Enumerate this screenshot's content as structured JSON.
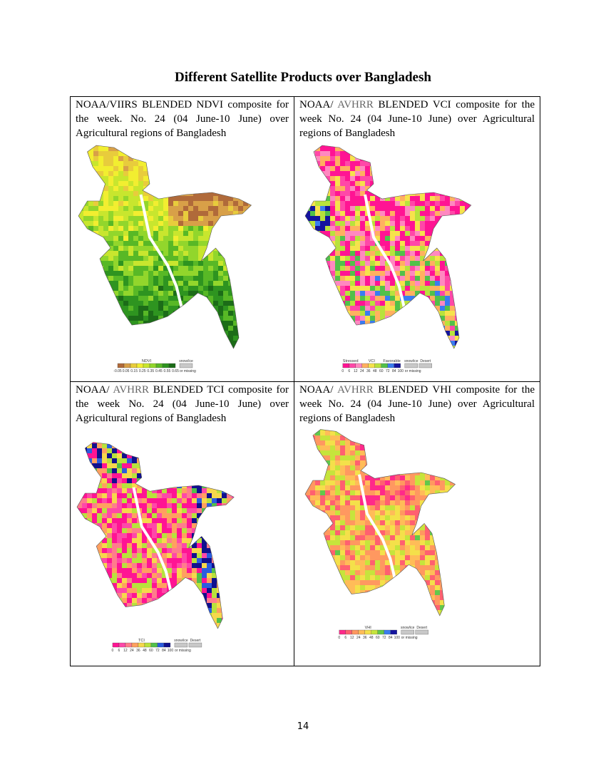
{
  "header": {
    "title": "Different Satellite Products over Bangladesh"
  },
  "panels": [
    {
      "caption": [
        "NOAA/VIIRS BLENDED NDVI composite for the week. No. 24 (04 June-10 June) over Agricultural regions of Bangladesh"
      ],
      "legend": {
        "above": [
          "NDVI"
        ],
        "ticks": [
          -0.05,
          0.05,
          0.15,
          0.25,
          0.35,
          0.45,
          0.55,
          0.65
        ],
        "extra": [
          "snow/ice"
        ],
        "missing": "or missing",
        "colors": [
          "#b06a3a",
          "#d8a048",
          "#e8cc3c",
          "#f2ee30",
          "#c8e62e",
          "#92d62c",
          "#58b826",
          "#2e9420",
          "#1c6c18"
        ]
      }
    },
    {
      "caption": [
        "NOAA/ ",
        "AVHRR",
        " BLENDED VCI composite for the week No. 24 (04 June-10 June) over Agricultural regions of Bangladesh"
      ],
      "legend": {
        "above": [
          "Stressed",
          "VCI",
          "Favorable"
        ],
        "ticks": [
          0,
          6,
          12,
          24,
          36,
          48,
          60,
          72,
          84,
          100
        ],
        "extra": [
          "snow/ice",
          "Desert"
        ],
        "missing": "or missing",
        "colors": [
          "#ff1493",
          "#ff48a8",
          "#ff88c0",
          "#ffb060",
          "#f6e24c",
          "#b8e23c",
          "#52c04a",
          "#3a7cf0",
          "#14149e"
        ]
      }
    },
    {
      "caption": [
        "NOAA/ ",
        "AVHRR",
        " BLENDED TCI composite for the week No. 24 (04 June-10 June) over Agricultural regions of Bangladesh"
      ],
      "legend": {
        "above": [
          "TCI"
        ],
        "ticks": [
          0,
          6,
          12,
          24,
          36,
          48,
          60,
          72,
          84,
          100
        ],
        "extra": [
          "snow/ice",
          "Desert"
        ],
        "missing": "or missing",
        "colors": [
          "#ff1493",
          "#ff48a8",
          "#ff7c8c",
          "#ffa060",
          "#f6d84c",
          "#b8e23c",
          "#52c04a",
          "#2a5ce0",
          "#10108e"
        ]
      }
    },
    {
      "caption": [
        "NOAA/ ",
        "AVHRR",
        " BLENDED VHI composite for the week No. 24 (04 June-10 June) over Agricultural regions of Bangladesh"
      ],
      "legend": {
        "above": [
          "VHI"
        ],
        "ticks": [
          0,
          6,
          12,
          24,
          36,
          48,
          60,
          72,
          84,
          100
        ],
        "extra": [
          "snow/ice",
          "Desert"
        ],
        "missing": "or missing",
        "colors": [
          "#ff2a8a",
          "#ff6070",
          "#ff9860",
          "#ffbc58",
          "#f4e04a",
          "#c6e43c",
          "#62c84a",
          "#3a7cf0",
          "#14149e"
        ]
      }
    }
  ],
  "footer": {
    "page_number": "14"
  }
}
